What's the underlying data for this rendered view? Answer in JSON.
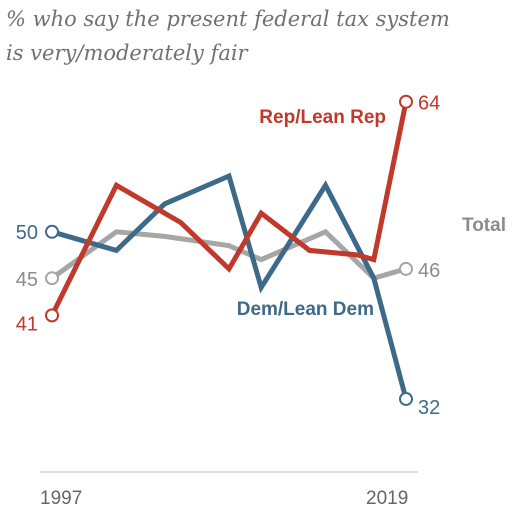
{
  "chart_data": {
    "type": "line",
    "title": "% who say the present federal tax system is very/moderately fair",
    "title_lines": [
      "% who say the present federal tax system",
      "is very/moderately fair"
    ],
    "x_range": [
      1997,
      2019
    ],
    "xticks": [
      "1997",
      "2019"
    ],
    "ylim": [
      25,
      70
    ],
    "grid": false,
    "series": [
      {
        "name": "Rep/Lean Rep",
        "color": "#C0392B",
        "label_color": "#C0392B",
        "points": [
          [
            1997,
            41
          ],
          [
            2001,
            55
          ],
          [
            2005,
            51
          ],
          [
            2008,
            46
          ],
          [
            2010,
            52
          ],
          [
            2013,
            48
          ],
          [
            2016,
            47.5
          ],
          [
            2017,
            47
          ],
          [
            2019,
            64
          ]
        ],
        "start_label": "41",
        "end_label": "64"
      },
      {
        "name": "Dem/Lean Dem",
        "color": "#3E6A89",
        "label_color": "#3E6A89",
        "points": [
          [
            1997,
            50
          ],
          [
            2001,
            48
          ],
          [
            2004,
            53
          ],
          [
            2008,
            56
          ],
          [
            2010,
            44
          ],
          [
            2014,
            55
          ],
          [
            2017,
            45
          ],
          [
            2019,
            32
          ]
        ],
        "start_label": "50",
        "end_label": "32"
      },
      {
        "name": "Total",
        "color": "#A6A6A6",
        "label_color": "#8C8C8C",
        "points": [
          [
            1997,
            45
          ],
          [
            2001,
            50
          ],
          [
            2004,
            49.5
          ],
          [
            2008,
            48.5
          ],
          [
            2010,
            47
          ],
          [
            2014,
            50
          ],
          [
            2017,
            45
          ],
          [
            2019,
            46
          ]
        ],
        "start_label": "45",
        "end_label": "46"
      }
    ]
  }
}
